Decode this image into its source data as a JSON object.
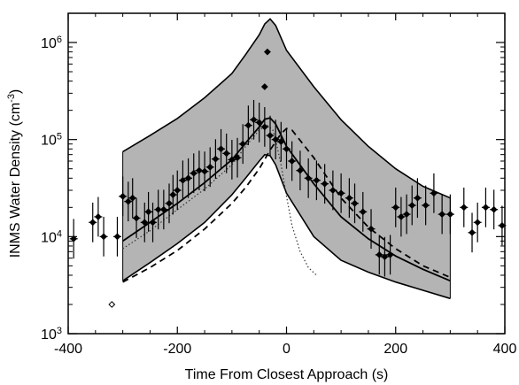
{
  "chart_data": {
    "type": "scatter",
    "title": "",
    "xlabel": "Time From Closest Approach (s)",
    "ylabel_main": "INMS Water Density (cm",
    "ylabel_sup": "-3",
    "ylabel_close": ")",
    "xlim": [
      -400,
      400
    ],
    "ylim": [
      1000,
      2000000
    ],
    "yscale": "log",
    "x_ticks": [
      -400,
      -200,
      0,
      200,
      400
    ],
    "x_tick_labels": [
      "-400",
      "-200",
      "0",
      "200",
      "400"
    ],
    "y_ticks": [
      {
        "value": 1000,
        "base": "10",
        "exp": "3"
      },
      {
        "value": 10000,
        "base": "10",
        "exp": "4"
      },
      {
        "value": 100000,
        "base": "10",
        "exp": "5"
      },
      {
        "value": 1000000,
        "base": "10",
        "exp": "6"
      }
    ],
    "grid": false,
    "colors": {
      "band": "#b4b4b4",
      "line": "#000000",
      "points": "#000000"
    },
    "band_upper": {
      "x": [
        -300,
        -250,
        -200,
        -150,
        -100,
        -75,
        -50,
        -40,
        -30,
        -20,
        0,
        50,
        100,
        150,
        200,
        250,
        300
      ],
      "y": [
        75000,
        110000,
        165000,
        270000,
        480000,
        750000,
        1200000,
        1550000,
        1750000,
        1500000,
        830000,
        350000,
        160000,
        85000,
        50000,
        33000,
        25000
      ]
    },
    "band_lower": {
      "x": [
        -300,
        -250,
        -200,
        -150,
        -100,
        -75,
        -50,
        -40,
        -30,
        -20,
        0,
        50,
        100,
        150,
        200,
        250,
        300
      ],
      "y": [
        3500,
        5400,
        8500,
        14000,
        27000,
        40000,
        60000,
        70000,
        68000,
        55000,
        28000,
        10000,
        5700,
        4300,
        3400,
        2800,
        2300
      ]
    },
    "model_solid": {
      "x": [
        -300,
        -250,
        -200,
        -150,
        -100,
        -75,
        -50,
        -40,
        -30,
        -20,
        0,
        50,
        100,
        150,
        200,
        250,
        300
      ],
      "y": [
        9000,
        14000,
        22000,
        36000,
        62000,
        92000,
        135000,
        162000,
        167000,
        145000,
        85000,
        35000,
        16000,
        9500,
        6300,
        4600,
        3500
      ]
    },
    "model_dashed": {
      "x": [
        -300,
        -250,
        -200,
        -150,
        -100,
        -75,
        -50,
        -30,
        -10,
        0,
        10,
        50,
        100,
        150,
        200,
        250,
        300
      ],
      "y": [
        3400,
        4800,
        7200,
        12000,
        22000,
        32000,
        50000,
        78000,
        115000,
        130000,
        125000,
        65000,
        25000,
        12500,
        7500,
        5000,
        3800
      ]
    },
    "model_dotted": {
      "x": [
        -300,
        -250,
        -200,
        -150,
        -100,
        -75,
        -50,
        -35,
        -25,
        -20,
        -10,
        0,
        10,
        25,
        40,
        55
      ],
      "y": [
        7500,
        11500,
        19000,
        31000,
        55000,
        85000,
        125000,
        140000,
        125000,
        100000,
        55000,
        26000,
        13000,
        7000,
        4800,
        4000
      ]
    },
    "points": {
      "x": [
        -390,
        -355,
        -345,
        -335,
        -310,
        -300,
        -290,
        -282,
        -275,
        -260,
        -253,
        -245,
        -235,
        -225,
        -215,
        -208,
        -200,
        -190,
        -180,
        -170,
        -160,
        -150,
        -140,
        -130,
        -120,
        -110,
        -100,
        -90,
        -80,
        -70,
        -60,
        -50,
        -40,
        -30,
        -20,
        -10,
        0,
        10,
        25,
        40,
        55,
        70,
        85,
        100,
        115,
        125,
        140,
        155,
        170,
        180,
        190,
        200,
        210,
        220,
        230,
        240,
        255,
        270,
        285,
        300,
        325,
        340,
        350,
        365,
        380,
        395
      ],
      "y": [
        9500,
        14000,
        16000,
        10000,
        10000,
        26000,
        23000,
        25000,
        15500,
        14000,
        18000,
        14000,
        19000,
        19000,
        22000,
        27000,
        30000,
        38000,
        40000,
        45000,
        48000,
        47000,
        52000,
        63000,
        80000,
        72000,
        62000,
        65000,
        90000,
        140000,
        160000,
        150000,
        135000,
        110000,
        100000,
        95000,
        80000,
        60000,
        48000,
        40000,
        38000,
        35000,
        30000,
        28000,
        25000,
        22000,
        18000,
        12000,
        6500,
        6200,
        6500,
        20000,
        16000,
        17000,
        21000,
        25000,
        21000,
        28000,
        17000,
        17000,
        20000,
        11000,
        14000,
        20000,
        19000,
        13000
      ]
    },
    "points_outliers": {
      "x": [
        -40,
        -35
      ],
      "y": [
        350000,
        800000
      ]
    },
    "points_open": {
      "x": [
        -320
      ],
      "y": [
        2000
      ]
    }
  }
}
